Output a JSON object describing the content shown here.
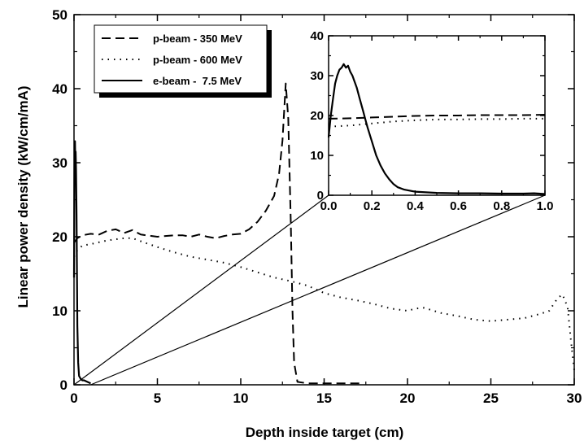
{
  "chart_data": [
    {
      "type": "line",
      "xlabel": "Depth inside target (cm)",
      "ylabel": "Linear power density (kW/cm/mA)",
      "xlim": [
        0,
        30
      ],
      "ylim": [
        0,
        50
      ],
      "xticks": [
        "0",
        "5",
        "10",
        "15",
        "20",
        "25",
        "30"
      ],
      "yticks": [
        "0",
        "10",
        "20",
        "30",
        "40",
        "50"
      ],
      "grid": false,
      "legend_position": "top-left",
      "series": [
        {
          "name": "p-beam - 350 MeV",
          "style": "dashed",
          "x": [
            0,
            0.2,
            0.5,
            1,
            1.5,
            2,
            2.5,
            3,
            3.5,
            4,
            5,
            6,
            6.5,
            7,
            7.5,
            8,
            8.5,
            9,
            9.5,
            10,
            10.5,
            11,
            11.5,
            12,
            12.3,
            12.5,
            12.7,
            12.85,
            13,
            13.1,
            13.2,
            13.4,
            14,
            15,
            16,
            17.3
          ],
          "values": [
            19.2,
            19.8,
            20.2,
            20.4,
            20.3,
            20.8,
            21.0,
            20.5,
            20.9,
            20.3,
            20.0,
            20.2,
            20.2,
            20.0,
            20.3,
            20.0,
            19.8,
            20.1,
            20.3,
            20.4,
            21.0,
            22.0,
            23.5,
            25.5,
            28.5,
            33.0,
            40.7,
            36.0,
            22.0,
            10.0,
            3.0,
            0.4,
            0.2,
            0.2,
            0.2,
            0.2
          ]
        },
        {
          "name": "p-beam - 600 MeV",
          "style": "dotted",
          "x": [
            0,
            0.2,
            0.5,
            1,
            2,
            3,
            3.5,
            4,
            5,
            6,
            7,
            8,
            9,
            10,
            11,
            12,
            13,
            14,
            15,
            16,
            17,
            18,
            19,
            20,
            20.5,
            21,
            22,
            23,
            24,
            25,
            26,
            27,
            28,
            28.5,
            29,
            29.3,
            29.6,
            29.8,
            30
          ],
          "values": [
            17.3,
            18.2,
            18.8,
            19.0,
            19.5,
            19.8,
            19.8,
            19.4,
            18.6,
            17.9,
            17.3,
            16.9,
            16.5,
            15.9,
            15.2,
            14.5,
            14.0,
            13.4,
            12.4,
            11.8,
            11.4,
            10.9,
            10.3,
            10.0,
            10.3,
            10.4,
            9.7,
            9.3,
            8.8,
            8.6,
            8.8,
            9.0,
            9.6,
            10.0,
            11.7,
            12.2,
            10.5,
            6.0,
            2.0
          ]
        },
        {
          "name": "e-beam -  7.5 MeV",
          "style": "solid",
          "x": [
            0,
            0.03,
            0.06,
            0.08,
            0.1,
            0.12,
            0.15,
            0.18,
            0.2,
            0.25,
            0.3,
            0.4,
            0.5,
            0.6,
            0.8,
            1.0
          ],
          "values": [
            14.5,
            30.0,
            32.9,
            30.0,
            31.5,
            29.0,
            23.0,
            14.0,
            8.0,
            3.0,
            1.2,
            0.8,
            0.6,
            0.6,
            0.4,
            0.2
          ]
        }
      ]
    },
    {
      "type": "line",
      "role": "inset",
      "xlim": [
        0,
        1.0
      ],
      "ylim": [
        0,
        40
      ],
      "xticks": [
        "0.0",
        "0.2",
        "0.4",
        "0.6",
        "0.8",
        "1.0"
      ],
      "yticks": [
        "0",
        "10",
        "20",
        "30",
        "40"
      ],
      "series": [
        {
          "style": "dashed",
          "x": [
            0,
            0.1,
            0.2,
            0.3,
            0.4,
            0.5,
            0.6,
            0.7,
            0.8,
            0.9,
            1.0
          ],
          "values": [
            19.2,
            19.3,
            19.5,
            19.7,
            19.9,
            20.0,
            20.0,
            20.1,
            20.1,
            20.1,
            20.2
          ]
        },
        {
          "style": "dotted",
          "x": [
            0,
            0.1,
            0.2,
            0.3,
            0.4,
            0.5,
            0.6,
            0.7,
            0.8,
            0.9,
            1.0
          ],
          "values": [
            17.2,
            17.5,
            18.0,
            18.5,
            18.8,
            19.0,
            19.0,
            19.1,
            19.1,
            19.2,
            19.2
          ]
        },
        {
          "style": "solid",
          "x": [
            0,
            0.01,
            0.02,
            0.03,
            0.04,
            0.05,
            0.06,
            0.07,
            0.08,
            0.09,
            0.1,
            0.11,
            0.12,
            0.13,
            0.14,
            0.15,
            0.16,
            0.17,
            0.18,
            0.2,
            0.22,
            0.24,
            0.26,
            0.28,
            0.3,
            0.32,
            0.35,
            0.4,
            0.5,
            0.6,
            0.7,
            0.8,
            0.9,
            0.95,
            1.0
          ],
          "values": [
            14.5,
            20.0,
            24.0,
            28.0,
            30.0,
            31.5,
            32.0,
            32.9,
            32.0,
            32.5,
            31.0,
            30.0,
            28.5,
            27.0,
            25.0,
            23.0,
            21.0,
            19.0,
            17.0,
            13.5,
            10.0,
            7.5,
            5.5,
            4.0,
            2.8,
            2.0,
            1.4,
            0.9,
            0.6,
            0.5,
            0.5,
            0.4,
            0.4,
            0.5,
            0.3
          ]
        }
      ]
    }
  ]
}
